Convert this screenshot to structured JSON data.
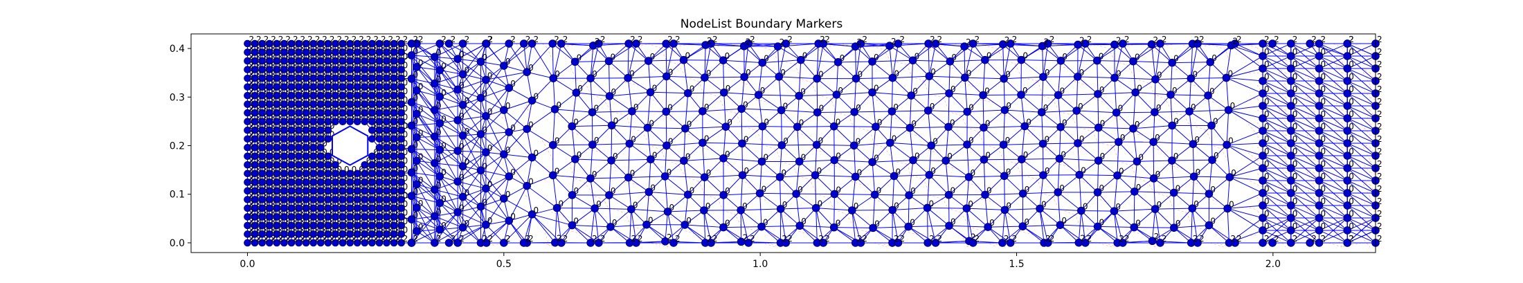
{
  "chart_data": {
    "type": "scatter",
    "title": "NodeList Boundary Markers",
    "xlabel": "",
    "ylabel": "",
    "xlim": [
      -0.11,
      2.2
    ],
    "ylim": [
      -0.02,
      0.43
    ],
    "x_ticks": [
      0.0,
      0.5,
      1.0,
      1.5,
      2.0
    ],
    "x_tick_labels": [
      "0.0",
      "0.5",
      "1.0",
      "1.5",
      "2.0"
    ],
    "y_ticks": [
      0.0,
      0.1,
      0.2,
      0.3,
      0.4
    ],
    "y_tick_labels": [
      "0.0",
      "0.1",
      "0.2",
      "0.3",
      "0.4"
    ],
    "grid": false,
    "domain": {
      "xmin": 0.0,
      "xmax": 2.2,
      "ymin": 0.0,
      "ymax": 0.41
    },
    "obstacle": {
      "shape": "hexagon",
      "cx": 0.2,
      "cy": 0.2,
      "r": 0.04
    },
    "boundary_marker_label": "2",
    "interior_marker_label": "0",
    "node_color": "#0000cc",
    "edge_color": "#0000ff",
    "dashed_color": "#f4a582",
    "marker_text_color": "#000000"
  }
}
